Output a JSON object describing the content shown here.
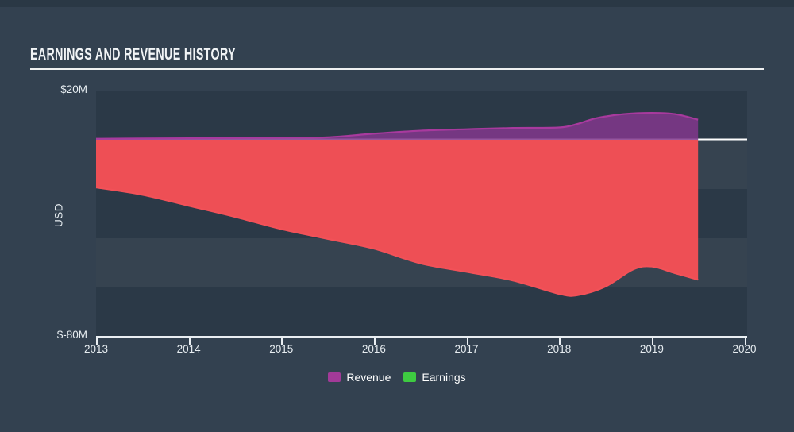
{
  "page": {
    "title": "EARNINGS AND REVENUE HISTORY"
  },
  "colors": {
    "background": "#334150",
    "top_strip": "#2a3845",
    "band_dark": "#2b3947",
    "band_light": "#364350",
    "zero_line": "#ffffff",
    "axis_line": "#e9eef2",
    "text": "#e6ecf0",
    "revenue_fill": "rgba(131,55,141,0.85)",
    "revenue_line": "#a83a9e",
    "earnings_area": "#ee4f55",
    "earnings_edge": "#f25158",
    "legend_revenue": "#a23a98",
    "legend_earnings": "#3ecb41"
  },
  "chart_data": {
    "type": "area",
    "title": "EARNINGS AND REVENUE HISTORY",
    "ylabel": "USD",
    "y_axis_labels": {
      "top": "$20M",
      "bottom": "$-80M"
    },
    "x_ticks": [
      2013,
      2014,
      2015,
      2016,
      2017,
      2018,
      2019,
      2020
    ],
    "x_domain": [
      2013,
      2020.03
    ],
    "ylim": [
      -80.5,
      20.1
    ],
    "grid": "horizontal-bands",
    "zero_line": true,
    "legend_position": "bottom-center",
    "legend": [
      {
        "label": "Revenue",
        "color": "#a23a98"
      },
      {
        "label": "Earnings",
        "color": "#3ecb41"
      }
    ],
    "units": "USD millions",
    "series": [
      {
        "name": "Earnings",
        "note": "negative values, drawn as red area below zero",
        "fill": "#ee4f55",
        "line": "#f25158",
        "points": [
          [
            2013.0,
            -19.5
          ],
          [
            2013.5,
            -22.5
          ],
          [
            2014.0,
            -27.0
          ],
          [
            2014.5,
            -31.5
          ],
          [
            2015.0,
            -36.5
          ],
          [
            2015.5,
            -40.5
          ],
          [
            2016.0,
            -44.5
          ],
          [
            2016.5,
            -50.5
          ],
          [
            2017.0,
            -54.0
          ],
          [
            2017.5,
            -57.5
          ],
          [
            2018.0,
            -63.0
          ],
          [
            2018.2,
            -63.5
          ],
          [
            2018.5,
            -60.0
          ],
          [
            2018.8,
            -53.0
          ],
          [
            2019.0,
            -51.8
          ],
          [
            2019.25,
            -54.5
          ],
          [
            2019.5,
            -57.2
          ]
        ]
      },
      {
        "name": "Revenue",
        "note": "purple area above zero",
        "fill": "rgba(131,55,141,0.85)",
        "line": "#a83a9e",
        "points": [
          [
            2013.0,
            0.4
          ],
          [
            2013.5,
            0.5
          ],
          [
            2014.0,
            0.6
          ],
          [
            2014.5,
            0.7
          ],
          [
            2015.0,
            0.8
          ],
          [
            2015.5,
            1.0
          ],
          [
            2016.0,
            2.5
          ],
          [
            2016.5,
            3.7
          ],
          [
            2017.0,
            4.3
          ],
          [
            2017.5,
            4.8
          ],
          [
            2018.0,
            5.0
          ],
          [
            2018.2,
            6.5
          ],
          [
            2018.4,
            8.8
          ],
          [
            2018.7,
            10.5
          ],
          [
            2019.0,
            11.0
          ],
          [
            2019.25,
            10.5
          ],
          [
            2019.5,
            8.2
          ]
        ]
      }
    ]
  }
}
